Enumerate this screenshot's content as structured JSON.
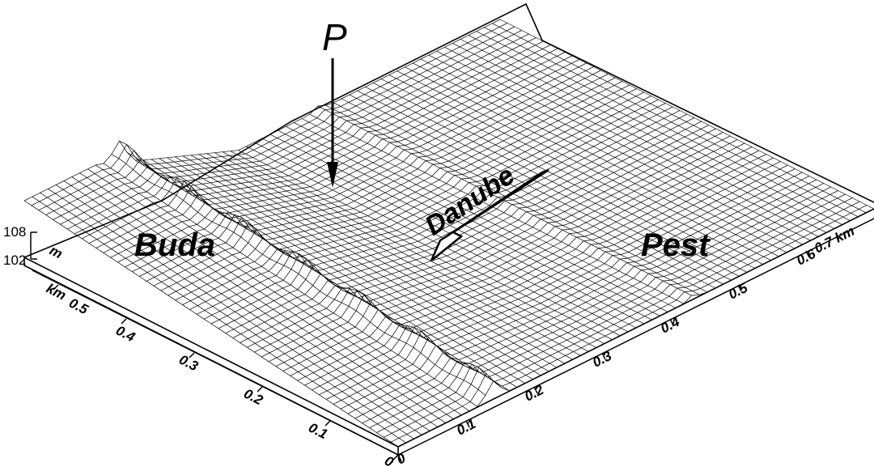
{
  "figure": {
    "labels": {
      "point": "P",
      "river": "Danube",
      "left_bank": "Buda",
      "right_bank": "Pest"
    },
    "x_axis": {
      "ticks": [
        "0",
        "0.1",
        "0.2",
        "0.3",
        "0.4",
        "0.5",
        "0.6",
        "0.7 km"
      ]
    },
    "y_axis": {
      "ticks": [
        "0",
        "0.1",
        "0.2",
        "0.3",
        "0.4",
        "0.5"
      ],
      "unit": "km"
    },
    "z_axis": {
      "ticks": [
        "108",
        "102"
      ],
      "unit": "m"
    },
    "surface": {
      "style": "wireframe mesh",
      "colors": {
        "line": "#000000",
        "fill": "#ffffff"
      }
    }
  }
}
